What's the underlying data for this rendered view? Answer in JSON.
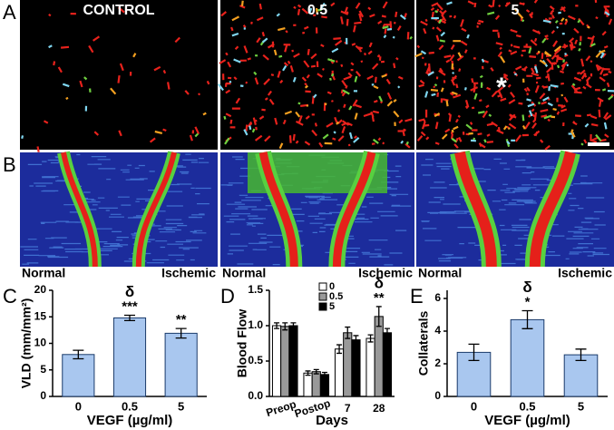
{
  "panel_labels": [
    "A",
    "B",
    "C",
    "D",
    "E"
  ],
  "images": {
    "column_titles": [
      "CONTROL",
      "0.5",
      "5"
    ],
    "marker": "*",
    "laser_labels": [
      [
        "Normal",
        "Ischemic"
      ],
      [
        "Normal",
        "Ischemic"
      ],
      [
        "Normal",
        "Ischemic"
      ]
    ]
  },
  "chart_data": [
    {
      "type": "bar",
      "ylabel": "VLD (mm/mm²)",
      "xlabel": "VEGF (µg/ml)",
      "categories": [
        "0",
        "0.5",
        "5"
      ],
      "values": [
        7.9,
        14.8,
        11.9
      ],
      "errors": [
        0.8,
        0.5,
        0.9
      ],
      "color": "#a9c7ef",
      "ylim": [
        0,
        20
      ],
      "yticks": [
        0,
        5,
        10,
        15,
        20
      ],
      "delta": [
        null,
        "δ",
        null
      ],
      "significance": [
        null,
        "***",
        "**"
      ]
    },
    {
      "type": "grouped_bar",
      "ylabel": "Blood Flow",
      "xlabel": "Days",
      "categories": [
        "Preop",
        "Postop",
        "7",
        "28"
      ],
      "series": [
        {
          "name": "0",
          "color": "#ffffff",
          "values": [
            1.0,
            0.33,
            0.67,
            0.82
          ],
          "errors": [
            0.04,
            0.03,
            0.06,
            0.05
          ]
        },
        {
          "name": "0.5",
          "color": "#999999",
          "values": [
            0.99,
            0.35,
            0.9,
            1.13
          ],
          "errors": [
            0.05,
            0.03,
            0.08,
            0.14
          ]
        },
        {
          "name": "5",
          "color": "#000000",
          "values": [
            1.0,
            0.31,
            0.8,
            0.9
          ],
          "errors": [
            0.04,
            0.03,
            0.06,
            0.06
          ]
        }
      ],
      "ylim": [
        0,
        1.5
      ],
      "yticks": [
        {
          "value": 0,
          "label": "0.0"
        },
        0.5,
        {
          "value": 1,
          "label": "1.0"
        },
        1.5
      ],
      "delta": [
        null,
        null,
        null,
        "δ"
      ],
      "significance": [
        null,
        null,
        null,
        "**"
      ]
    },
    {
      "type": "bar",
      "ylabel": "Collaterals",
      "xlabel": "VEGF (µg/ml)",
      "categories": [
        "0",
        "0.5",
        "5"
      ],
      "values": [
        2.7,
        4.7,
        2.55
      ],
      "errors": [
        0.5,
        0.55,
        0.35
      ],
      "color": "#a9c7ef",
      "ylim": [
        0,
        6.5
      ],
      "yticks": [
        0,
        2,
        4,
        6
      ],
      "delta": [
        null,
        "δ",
        null
      ],
      "significance": [
        null,
        "*",
        null
      ]
    }
  ]
}
